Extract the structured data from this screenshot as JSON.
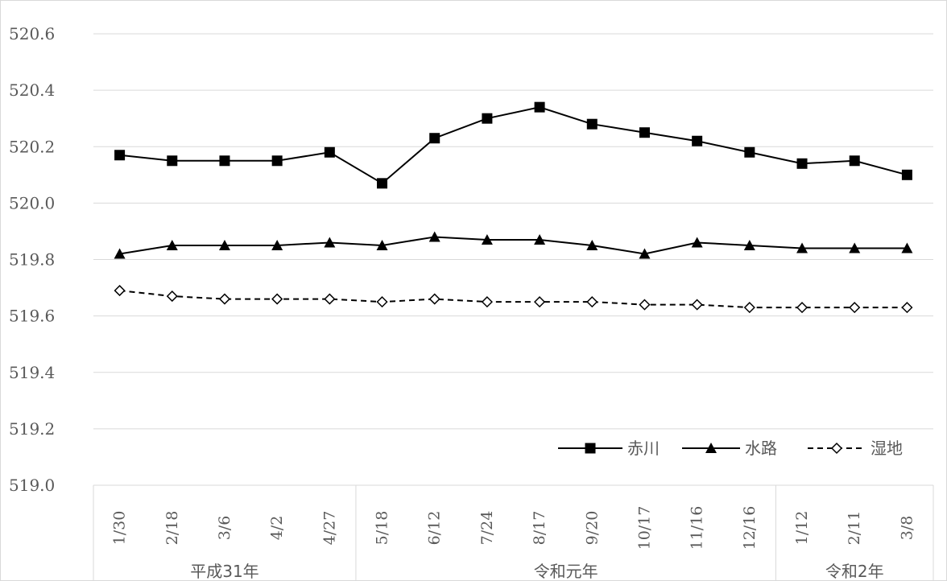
{
  "chart_data": {
    "type": "line",
    "categories": [
      "1/30",
      "2/18",
      "3/6",
      "4/2",
      "4/27",
      "5/18",
      "6/12",
      "7/24",
      "8/17",
      "9/20",
      "10/17",
      "11/16",
      "12/16",
      "1/12",
      "2/11",
      "3/8"
    ],
    "groups": [
      {
        "label": "平成31年",
        "start": 0,
        "end": 4
      },
      {
        "label": "令和元年",
        "start": 5,
        "end": 12
      },
      {
        "label": "令和2年",
        "start": 13,
        "end": 15
      }
    ],
    "ylim": [
      519.0,
      520.6
    ],
    "yticks": [
      "519.0",
      "519.2",
      "519.4",
      "519.6",
      "519.8",
      "520.0",
      "520.2",
      "520.4",
      "520.6"
    ],
    "grid": true,
    "legend_position": "bottom-right",
    "series": [
      {
        "name": "赤川",
        "marker": "square",
        "dash": false,
        "color": "#000000",
        "values": [
          520.17,
          520.15,
          520.15,
          520.15,
          520.18,
          520.07,
          520.23,
          520.3,
          520.34,
          520.28,
          520.25,
          520.22,
          520.18,
          520.14,
          520.15,
          520.1
        ]
      },
      {
        "name": "水路",
        "marker": "triangle",
        "dash": false,
        "color": "#000000",
        "values": [
          519.82,
          519.85,
          519.85,
          519.85,
          519.86,
          519.85,
          519.88,
          519.87,
          519.87,
          519.85,
          519.82,
          519.86,
          519.85,
          519.84,
          519.84,
          519.84
        ]
      },
      {
        "name": "湿地",
        "marker": "diamond-open",
        "dash": true,
        "color": "#000000",
        "values": [
          519.69,
          519.67,
          519.66,
          519.66,
          519.66,
          519.65,
          519.66,
          519.65,
          519.65,
          519.65,
          519.64,
          519.64,
          519.63,
          519.63,
          519.63,
          519.63
        ]
      }
    ]
  }
}
